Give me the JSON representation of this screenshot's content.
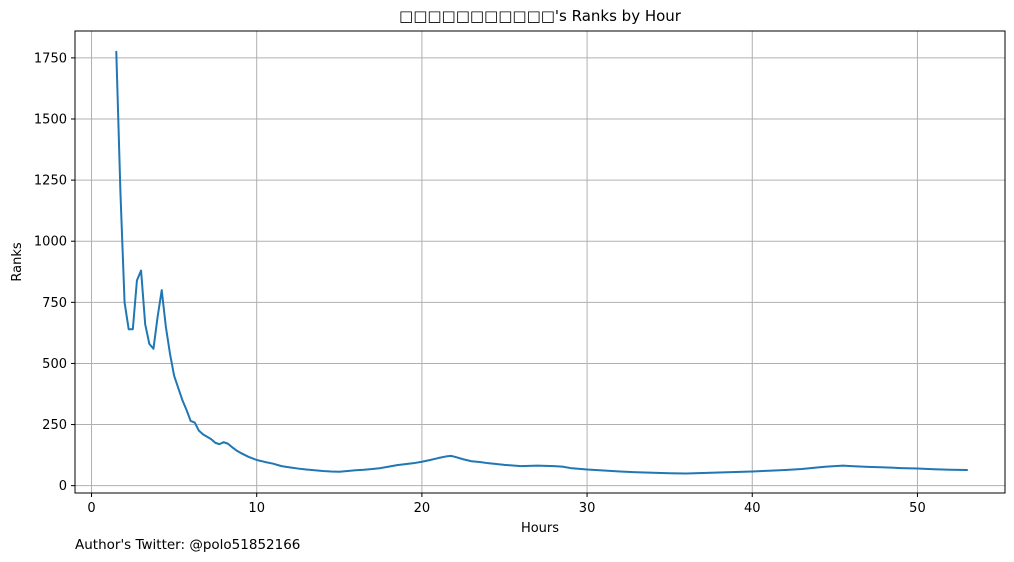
{
  "chart_data": {
    "type": "line",
    "title": "□□□□□□□□□□□'s Ranks by Hour",
    "xlabel": "Hours",
    "ylabel": "Ranks",
    "xlim": [
      -1,
      55.3
    ],
    "ylim": [
      -30,
      1860
    ],
    "xticks": [
      0,
      10,
      20,
      30,
      40,
      50
    ],
    "yticks": [
      0,
      250,
      500,
      750,
      1000,
      1250,
      1500,
      1750
    ],
    "grid": true,
    "legend": "none",
    "series": [
      {
        "color": "#1f77b4",
        "x": [
          1.5,
          1.75,
          2.0,
          2.25,
          2.5,
          2.75,
          3.0,
          3.25,
          3.5,
          3.75,
          4.0,
          4.25,
          4.5,
          4.75,
          5.0,
          5.25,
          5.5,
          5.75,
          6.0,
          6.25,
          6.5,
          6.75,
          7.0,
          7.25,
          7.5,
          7.75,
          8.0,
          8.25,
          8.5,
          8.75,
          9.0,
          9.5,
          10.0,
          10.5,
          11.0,
          11.5,
          12.0,
          12.5,
          13.0,
          13.5,
          14.0,
          14.5,
          15.0,
          15.5,
          16.0,
          16.5,
          17.0,
          17.5,
          18.0,
          18.5,
          19.0,
          19.5,
          20.0,
          20.5,
          21.0,
          21.5,
          21.75,
          22.0,
          22.5,
          23.0,
          23.5,
          24.0,
          25.0,
          26.0,
          27.0,
          28.0,
          28.5,
          29.0,
          30.0,
          31.0,
          32.0,
          33.0,
          34.0,
          35.0,
          36.0,
          37.0,
          38.0,
          39.0,
          40.0,
          41.0,
          42.0,
          43.0,
          44.0,
          44.5,
          45.0,
          45.5,
          46.0,
          47.0,
          48.0,
          49.0,
          50.0,
          51.0,
          52.0,
          53.0
        ],
        "y": [
          1775,
          1200,
          750,
          640,
          640,
          840,
          880,
          660,
          580,
          560,
          690,
          800,
          650,
          540,
          450,
          400,
          350,
          310,
          265,
          258,
          225,
          210,
          200,
          190,
          175,
          170,
          178,
          172,
          158,
          145,
          135,
          118,
          105,
          97,
          90,
          80,
          75,
          70,
          66,
          63,
          60,
          58,
          57,
          60,
          63,
          65,
          68,
          72,
          78,
          84,
          88,
          92,
          98,
          105,
          113,
          120,
          122,
          118,
          108,
          100,
          97,
          92,
          85,
          80,
          82,
          80,
          78,
          72,
          66,
          62,
          58,
          55,
          53,
          51,
          50,
          52,
          54,
          56,
          58,
          61,
          64,
          68,
          75,
          78,
          80,
          82,
          80,
          77,
          75,
          72,
          70,
          67,
          65,
          64
        ]
      }
    ]
  },
  "footer": {
    "text": "Author's Twitter: @polo51852166"
  }
}
